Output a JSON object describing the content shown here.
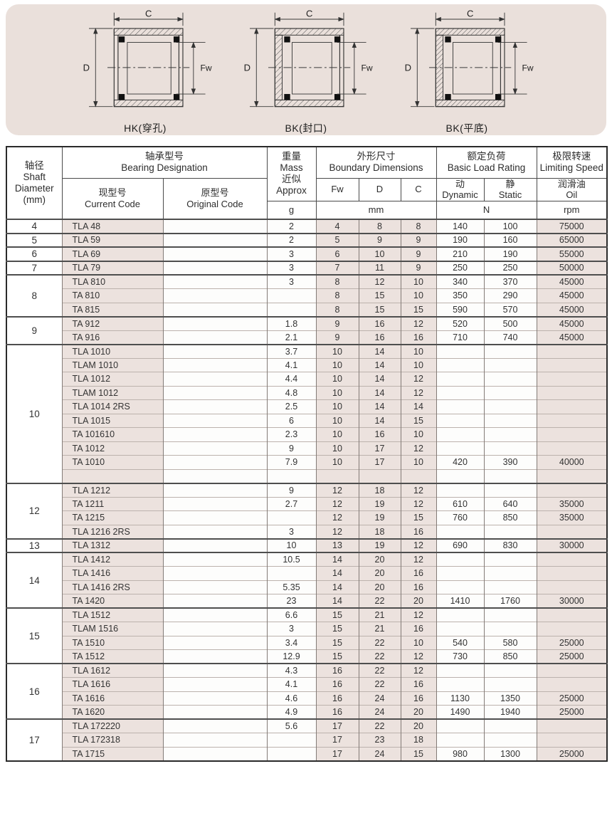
{
  "colors": {
    "panel_bg": "#eae0db",
    "cell_shade": "#ece2de",
    "page_bg": "#ffffff",
    "line_dark": "#2a2a2a"
  },
  "diagrams": {
    "items": [
      {
        "caption": "HK(穿孔)",
        "dim_c": "C",
        "dim_d": "D",
        "dim_fw": "Fw",
        "style": "open"
      },
      {
        "caption": "BK(封口)",
        "dim_c": "C",
        "dim_d": "D",
        "dim_fw": "Fw",
        "style": "closed"
      },
      {
        "caption": "BK(平底)",
        "dim_c": "C",
        "dim_d": "D",
        "dim_fw": "Fw",
        "style": "closed"
      }
    ]
  },
  "table": {
    "header": {
      "shaft": "轴径\nShaft\nDiameter\n(mm)",
      "designation": "轴承型号\nBearing Designation",
      "current_code": "现型号\nCurrent Code",
      "original_code": "原型号\nOriginal Code",
      "mass": "重量\nMass\n近似\nApprox",
      "mass_unit": "g",
      "boundary": "外形尺寸\nBoundary Dimensions",
      "fw": "Fw",
      "d": "D",
      "c": "C",
      "dim_unit": "mm",
      "load": "额定负荷\nBasic Load Rating",
      "dynamic": "动\nDynamic",
      "static": "静\nStatic",
      "load_unit": "N",
      "speed": "极限转速\nLimiting Speed",
      "oil": "润滑油\nOil",
      "speed_unit": "rpm"
    },
    "groups": [
      {
        "shaft": "4",
        "rows": [
          [
            "TLA 48",
            "",
            "2",
            "4",
            "8",
            "8",
            "140",
            "100",
            "75000"
          ]
        ]
      },
      {
        "shaft": "5",
        "rows": [
          [
            "TLA 59",
            "",
            "2",
            "5",
            "9",
            "9",
            "190",
            "160",
            "65000"
          ]
        ]
      },
      {
        "shaft": "6",
        "rows": [
          [
            "TLA 69",
            "",
            "3",
            "6",
            "10",
            "9",
            "210",
            "190",
            "55000"
          ]
        ]
      },
      {
        "shaft": "7",
        "rows": [
          [
            "TLA 79",
            "",
            "3",
            "7",
            "11",
            "9",
            "250",
            "250",
            "50000"
          ]
        ]
      },
      {
        "shaft": "8",
        "rows": [
          [
            "TLA 810",
            "",
            "3",
            "8",
            "12",
            "10",
            "340",
            "370",
            "45000"
          ],
          [
            "TA 810",
            "",
            "",
            "8",
            "15",
            "10",
            "350",
            "290",
            "45000"
          ],
          [
            "TA 815",
            "",
            "",
            "8",
            "15",
            "15",
            "590",
            "570",
            "45000"
          ]
        ]
      },
      {
        "shaft": "9",
        "rows": [
          [
            "TA 912",
            "",
            "1.8",
            "9",
            "16",
            "12",
            "520",
            "500",
            "45000"
          ],
          [
            "TA 916",
            "",
            "2.1",
            "9",
            "16",
            "16",
            "710",
            "740",
            "45000"
          ]
        ]
      },
      {
        "shaft": "10",
        "rows": [
          [
            "TLA 1010",
            "",
            "3.7",
            "10",
            "14",
            "10",
            "",
            "",
            ""
          ],
          [
            "TLAM 1010",
            "",
            "4.1",
            "10",
            "14",
            "10",
            "",
            "",
            ""
          ],
          [
            "TLA 1012",
            "",
            "4.4",
            "10",
            "14",
            "12",
            "",
            "",
            ""
          ],
          [
            "TLAM 1012",
            "",
            "4.8",
            "10",
            "14",
            "12",
            "",
            "",
            ""
          ],
          [
            "TLA 1014 2RS",
            "",
            "2.5",
            "10",
            "14",
            "14",
            "",
            "",
            ""
          ],
          [
            "TLA 1015",
            "",
            "6",
            "10",
            "14",
            "15",
            "",
            "",
            ""
          ],
          [
            "TA 101610",
            "",
            "2.3",
            "10",
            "16",
            "10",
            "",
            "",
            ""
          ],
          [
            "TA 1012",
            "",
            "9",
            "10",
            "17",
            "12",
            "",
            "",
            ""
          ],
          [
            "TA 1010",
            "",
            "7.9",
            "10",
            "17",
            "10",
            "420",
            "390",
            "40000"
          ],
          [
            "",
            "",
            "",
            "",
            "",
            "",
            "",
            "",
            ""
          ]
        ]
      },
      {
        "shaft": "12",
        "rows": [
          [
            "TLA 1212",
            "",
            "9",
            "12",
            "18",
            "12",
            "",
            "",
            ""
          ],
          [
            "TA 1211",
            "",
            "2.7",
            "12",
            "19",
            "12",
            "610",
            "640",
            "35000"
          ],
          [
            "TA 1215",
            "",
            "",
            "12",
            "19",
            "15",
            "760",
            "850",
            "35000"
          ],
          [
            "TLA 1216 2RS",
            "",
            "3",
            "12",
            "18",
            "16",
            "",
            "",
            ""
          ]
        ]
      },
      {
        "shaft": "13",
        "rows": [
          [
            "TLA 1312",
            "",
            "10",
            "13",
            "19",
            "12",
            "690",
            "830",
            "30000"
          ]
        ]
      },
      {
        "shaft": "14",
        "rows": [
          [
            "TLA 1412",
            "",
            "10.5",
            "14",
            "20",
            "12",
            "",
            "",
            ""
          ],
          [
            "TLA 1416",
            "",
            "",
            "14",
            "20",
            "16",
            "",
            "",
            ""
          ],
          [
            "TLA 1416 2RS",
            "",
            "5.35",
            "14",
            "20",
            "16",
            "",
            "",
            ""
          ],
          [
            "TA 1420",
            "",
            "23",
            "14",
            "22",
            "20",
            "1410",
            "1760",
            "30000"
          ]
        ]
      },
      {
        "shaft": "15",
        "rows": [
          [
            "TLA 1512",
            "",
            "6.6",
            "15",
            "21",
            "12",
            "",
            "",
            ""
          ],
          [
            "TLAM 1516",
            "",
            "3",
            "15",
            "21",
            "16",
            "",
            "",
            ""
          ],
          [
            "TA 1510",
            "",
            "3.4",
            "15",
            "22",
            "10",
            "540",
            "580",
            "25000"
          ],
          [
            "TA 1512",
            "",
            "12.9",
            "15",
            "22",
            "12",
            "730",
            "850",
            "25000"
          ]
        ]
      },
      {
        "shaft": "16",
        "rows": [
          [
            "TLA 1612",
            "",
            "4.3",
            "16",
            "22",
            "12",
            "",
            "",
            ""
          ],
          [
            "TLA 1616",
            "",
            "4.1",
            "16",
            "22",
            "16",
            "",
            "",
            ""
          ],
          [
            "TA 1616",
            "",
            "4.6",
            "16",
            "24",
            "16",
            "1130",
            "1350",
            "25000"
          ],
          [
            "TA 1620",
            "",
            "4.9",
            "16",
            "24",
            "20",
            "1490",
            "1940",
            "25000"
          ]
        ]
      },
      {
        "shaft": "17",
        "rows": [
          [
            "TLA 172220",
            "",
            "5.6",
            "17",
            "22",
            "20",
            "",
            "",
            ""
          ],
          [
            "TLA 172318",
            "",
            "",
            "17",
            "23",
            "18",
            "",
            "",
            ""
          ],
          [
            "TA 1715",
            "",
            "",
            "17",
            "24",
            "15",
            "980",
            "1300",
            "25000"
          ]
        ]
      }
    ]
  }
}
